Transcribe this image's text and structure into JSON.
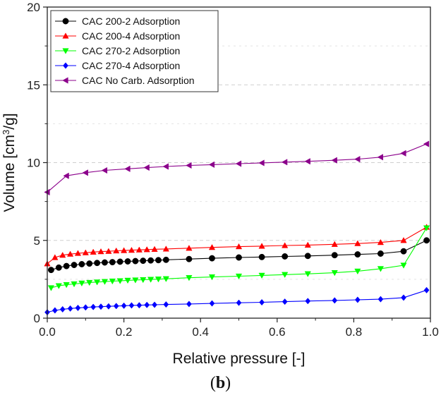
{
  "caption": {
    "open": "(",
    "label": "b",
    "close": ")"
  },
  "chart_data": {
    "type": "line",
    "xlabel": "Relative pressure [-]",
    "ylabel_parts": {
      "main": "Volume [cm",
      "sup": "3",
      "tail": "/g]"
    },
    "xlim": [
      0,
      1.0
    ],
    "ylim": [
      0,
      20
    ],
    "x_ticks": [
      0.0,
      0.2,
      0.4,
      0.6,
      0.8,
      1.0
    ],
    "x_tick_labels": [
      "0.0",
      "0.2",
      "0.4",
      "0.6",
      "0.8",
      "1.0"
    ],
    "y_ticks": [
      0,
      5,
      10,
      15,
      20
    ],
    "y_tick_labels": [
      "0",
      "5",
      "10",
      "15",
      "20"
    ],
    "grid": "horizontal dashed",
    "legend_position": "top-left",
    "series": [
      {
        "name": "CAC 200-2 Adsorption",
        "color": "#000000",
        "marker": "circle",
        "x": [
          0.01,
          0.03,
          0.05,
          0.07,
          0.09,
          0.11,
          0.13,
          0.15,
          0.17,
          0.19,
          0.21,
          0.23,
          0.25,
          0.27,
          0.29,
          0.31,
          0.37,
          0.43,
          0.5,
          0.56,
          0.62,
          0.68,
          0.75,
          0.81,
          0.87,
          0.93,
          0.99
        ],
        "y": [
          3.1,
          3.25,
          3.35,
          3.42,
          3.47,
          3.51,
          3.55,
          3.58,
          3.6,
          3.63,
          3.65,
          3.67,
          3.69,
          3.71,
          3.73,
          3.75,
          3.8,
          3.85,
          3.9,
          3.93,
          3.97,
          4.0,
          4.05,
          4.1,
          4.15,
          4.3,
          5.0
        ]
      },
      {
        "name": "CAC 200-4 Adsorption",
        "color": "#ff0000",
        "marker": "triangle-up",
        "x": [
          0.0,
          0.02,
          0.04,
          0.06,
          0.08,
          0.1,
          0.12,
          0.14,
          0.16,
          0.18,
          0.2,
          0.22,
          0.24,
          0.26,
          0.28,
          0.31,
          0.37,
          0.43,
          0.5,
          0.56,
          0.62,
          0.68,
          0.75,
          0.81,
          0.87,
          0.93,
          0.99
        ],
        "y": [
          3.5,
          3.9,
          4.05,
          4.12,
          4.17,
          4.21,
          4.25,
          4.28,
          4.3,
          4.33,
          4.35,
          4.37,
          4.39,
          4.41,
          4.43,
          4.45,
          4.5,
          4.55,
          4.6,
          4.63,
          4.67,
          4.7,
          4.75,
          4.8,
          4.87,
          5.0,
          5.85
        ]
      },
      {
        "name": "CAC 270-2 Adsorption",
        "color": "#00ff00",
        "marker": "triangle-down",
        "x": [
          0.01,
          0.03,
          0.05,
          0.07,
          0.09,
          0.11,
          0.13,
          0.15,
          0.17,
          0.19,
          0.21,
          0.23,
          0.25,
          0.27,
          0.29,
          0.31,
          0.37,
          0.43,
          0.5,
          0.56,
          0.62,
          0.68,
          0.75,
          0.81,
          0.87,
          0.93,
          0.99
        ],
        "y": [
          1.95,
          2.08,
          2.15,
          2.2,
          2.25,
          2.29,
          2.32,
          2.35,
          2.38,
          2.4,
          2.43,
          2.45,
          2.47,
          2.49,
          2.51,
          2.53,
          2.6,
          2.65,
          2.7,
          2.75,
          2.8,
          2.85,
          2.92,
          3.02,
          3.18,
          3.4,
          5.8
        ]
      },
      {
        "name": "CAC 270-4 Adsorption",
        "color": "#0000ff",
        "marker": "diamond",
        "x": [
          0.0,
          0.02,
          0.04,
          0.06,
          0.08,
          0.1,
          0.12,
          0.14,
          0.16,
          0.18,
          0.2,
          0.22,
          0.24,
          0.26,
          0.28,
          0.31,
          0.37,
          0.43,
          0.5,
          0.56,
          0.62,
          0.68,
          0.75,
          0.81,
          0.87,
          0.93,
          0.99
        ],
        "y": [
          0.38,
          0.5,
          0.57,
          0.62,
          0.66,
          0.69,
          0.72,
          0.74,
          0.76,
          0.78,
          0.8,
          0.82,
          0.83,
          0.85,
          0.86,
          0.88,
          0.91,
          0.95,
          0.99,
          1.02,
          1.06,
          1.1,
          1.14,
          1.18,
          1.22,
          1.32,
          1.8
        ]
      },
      {
        "name": "CAC No Carb. Adsorption",
        "color": "#8b008b",
        "marker": "triangle-left",
        "x": [
          0.0,
          0.05,
          0.1,
          0.15,
          0.21,
          0.26,
          0.31,
          0.37,
          0.43,
          0.5,
          0.56,
          0.62,
          0.68,
          0.75,
          0.81,
          0.87,
          0.93,
          0.99
        ],
        "y": [
          8.1,
          9.15,
          9.35,
          9.5,
          9.6,
          9.68,
          9.75,
          9.82,
          9.87,
          9.93,
          9.98,
          10.03,
          10.08,
          10.15,
          10.22,
          10.35,
          10.6,
          11.2
        ]
      }
    ]
  }
}
